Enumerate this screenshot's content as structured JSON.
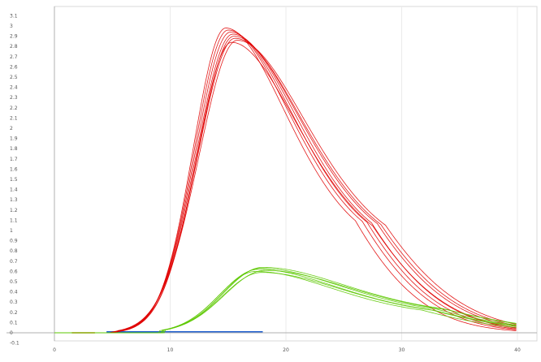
{
  "chart_data": {
    "type": "line",
    "title": "",
    "xlabel": "",
    "ylabel": "",
    "xlim": [
      0,
      42
    ],
    "ylim": [
      -0.1,
      3.1
    ],
    "grid": true,
    "legend": "none",
    "x_ticks": [
      {
        "value": 0,
        "label": "0"
      },
      {
        "value": 10,
        "label": "10"
      },
      {
        "value": 20,
        "label": "20"
      },
      {
        "value": 30,
        "label": "30"
      },
      {
        "value": 40,
        "label": "40"
      }
    ],
    "y_ticks": [
      {
        "value": 3.1,
        "label": "3.1"
      },
      {
        "value": 3.0,
        "label": "3"
      },
      {
        "value": 2.9,
        "label": "2.9"
      },
      {
        "value": 2.8,
        "label": "2.8"
      },
      {
        "value": 2.7,
        "label": "2.7"
      },
      {
        "value": 2.6,
        "label": "2.6"
      },
      {
        "value": 2.5,
        "label": "2.5"
      },
      {
        "value": 2.4,
        "label": "2.4"
      },
      {
        "value": 2.3,
        "label": "2.3"
      },
      {
        "value": 2.2,
        "label": "2.2"
      },
      {
        "value": 2.1,
        "label": "2.1"
      },
      {
        "value": 2.0,
        "label": "2"
      },
      {
        "value": 1.9,
        "label": "1.9"
      },
      {
        "value": 1.8,
        "label": "1.8"
      },
      {
        "value": 1.7,
        "label": "1.7"
      },
      {
        "value": 1.6,
        "label": "1.6"
      },
      {
        "value": 1.5,
        "label": "1.5"
      },
      {
        "value": 1.4,
        "label": "1.4"
      },
      {
        "value": 1.3,
        "label": "1.3"
      },
      {
        "value": 1.2,
        "label": "1.2"
      },
      {
        "value": 1.1,
        "label": "1.1"
      },
      {
        "value": 1.0,
        "label": "1"
      },
      {
        "value": 0.9,
        "label": "0.9"
      },
      {
        "value": 0.8,
        "label": "0.8"
      },
      {
        "value": 0.7,
        "label": "0.7"
      },
      {
        "value": 0.6,
        "label": "0.6"
      },
      {
        "value": 0.5,
        "label": "0.5"
      },
      {
        "value": 0.4,
        "label": "0.4"
      },
      {
        "value": 0.3,
        "label": "0.3"
      },
      {
        "value": 0.2,
        "label": "0.2"
      },
      {
        "value": 0.1,
        "label": "0.1"
      },
      {
        "value": 0.0,
        "label": "0"
      },
      {
        "value": -0.1,
        "label": "-0.1"
      }
    ],
    "groups": [
      {
        "color": "#e00000",
        "series": [
          {
            "peak_x": 14.8,
            "peak_y": 2.98,
            "rise": 2.8,
            "fall": 5.6,
            "onset": 4.8
          },
          {
            "peak_x": 15.0,
            "peak_y": 2.96,
            "rise": 2.9,
            "fall": 5.8,
            "onset": 4.9
          },
          {
            "peak_x": 15.2,
            "peak_y": 2.94,
            "rise": 3.0,
            "fall": 5.9,
            "onset": 5.0
          },
          {
            "peak_x": 15.4,
            "peak_y": 2.92,
            "rise": 3.1,
            "fall": 6.0,
            "onset": 5.1
          },
          {
            "peak_x": 15.5,
            "peak_y": 2.9,
            "rise": 3.1,
            "fall": 6.2,
            "onset": 5.2
          },
          {
            "peak_x": 15.6,
            "peak_y": 2.88,
            "rise": 3.2,
            "fall": 6.3,
            "onset": 5.3
          },
          {
            "peak_x": 15.8,
            "peak_y": 2.86,
            "rise": 3.3,
            "fall": 6.4,
            "onset": 5.4
          },
          {
            "peak_x": 15.3,
            "peak_y": 2.84,
            "rise": 3.0,
            "fall": 6.1,
            "onset": 5.1
          }
        ]
      },
      {
        "color": "#5cc800",
        "series": [
          {
            "peak_x": 17.4,
            "peak_y": 0.6,
            "rise": 3.2,
            "fall": 7.2,
            "onset": 9.0
          },
          {
            "peak_x": 17.6,
            "peak_y": 0.62,
            "rise": 3.3,
            "fall": 7.4,
            "onset": 9.2
          },
          {
            "peak_x": 17.8,
            "peak_y": 0.63,
            "rise": 3.3,
            "fall": 7.6,
            "onset": 9.3
          },
          {
            "peak_x": 18.0,
            "peak_y": 0.64,
            "rise": 3.4,
            "fall": 7.8,
            "onset": 9.4
          },
          {
            "peak_x": 18.2,
            "peak_y": 0.61,
            "rise": 3.5,
            "fall": 7.9,
            "onset": 9.5
          },
          {
            "peak_x": 17.9,
            "peak_y": 0.59,
            "rise": 3.4,
            "fall": 7.5,
            "onset": 9.3
          }
        ]
      }
    ],
    "baseline_segments": [
      {
        "color": "#e06000",
        "x": [
          1.5,
          3.5
        ],
        "y": 0.0
      },
      {
        "color": "#2060d0",
        "x": [
          4.5,
          18.0
        ],
        "y": 0.01
      }
    ]
  }
}
